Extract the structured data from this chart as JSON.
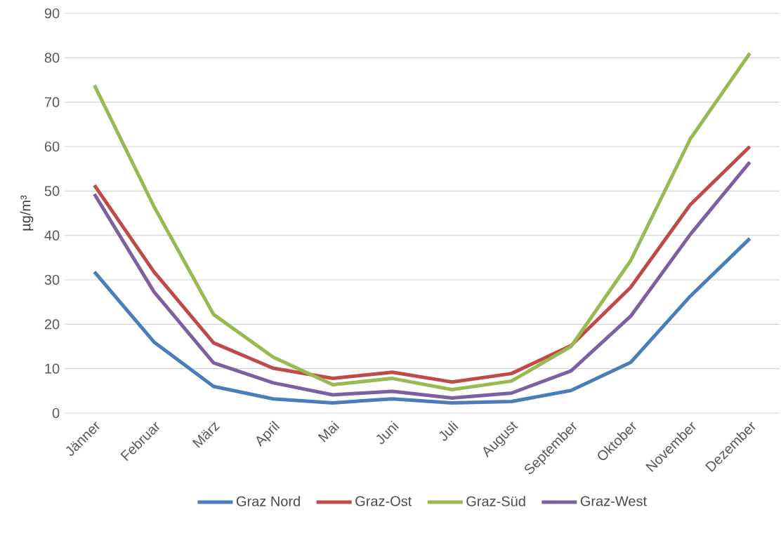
{
  "chart_data": {
    "type": "line",
    "ylabel": "µg/m³",
    "categories": [
      "Jänner",
      "Februar",
      "März",
      "April",
      "Mai",
      "Juni",
      "Juli",
      "August",
      "September",
      "Oktober",
      "November",
      "Dezember"
    ],
    "series": [
      {
        "name": "Graz Nord",
        "color": "#4a7ebb",
        "values": [
          31.8,
          16,
          6,
          3.2,
          2.3,
          3.2,
          2.3,
          2.6,
          5.1,
          11.4,
          26.3,
          39.3
        ]
      },
      {
        "name": "Graz-Ost",
        "color": "#be4b48",
        "values": [
          51.3,
          31.8,
          15.8,
          10.1,
          7.8,
          9.2,
          7.0,
          8.9,
          15.2,
          28.3,
          46.9,
          60.0
        ]
      },
      {
        "name": "Graz-Süd",
        "color": "#98b954",
        "values": [
          73.8,
          46.5,
          22.2,
          12.6,
          6.4,
          7.8,
          5.3,
          7.2,
          15.0,
          34.3,
          61.7,
          81.0
        ]
      },
      {
        "name": "Graz-West",
        "color": "#7d60a0",
        "values": [
          49.3,
          27.3,
          11.3,
          6.8,
          4.1,
          4.9,
          3.4,
          4.5,
          9.5,
          21.8,
          40.2,
          56.5
        ]
      }
    ],
    "ylim": [
      0,
      90
    ],
    "yticks": [
      0,
      10,
      20,
      30,
      40,
      50,
      60,
      70,
      80,
      90
    ],
    "grid": "y",
    "legend": "bottom",
    "marker": "none",
    "line_style": "solid"
  }
}
